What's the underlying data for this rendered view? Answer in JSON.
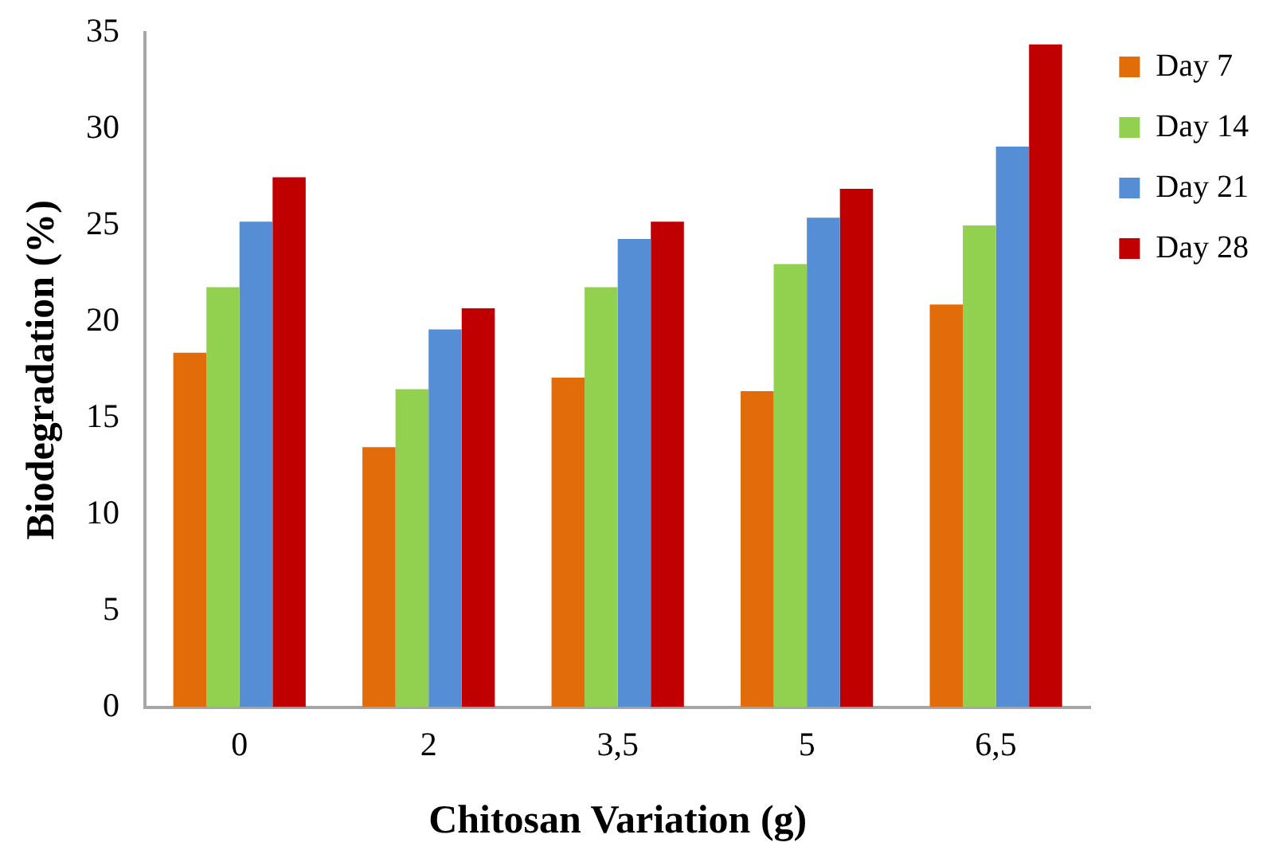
{
  "chart_data": {
    "type": "bar",
    "xlabel": "Chitosan Variation (g)",
    "ylabel": "Biodegradation (%)",
    "categories": [
      "0",
      "2",
      "3,5",
      "5",
      "6,5"
    ],
    "series": [
      {
        "name": "Day 7",
        "color": "#e36c0a",
        "values": [
          18.4,
          13.5,
          17.1,
          16.4,
          20.9
        ]
      },
      {
        "name": "Day 14",
        "color": "#92d050",
        "values": [
          21.8,
          16.5,
          21.8,
          23.0,
          25.0
        ]
      },
      {
        "name": "Day 21",
        "color": "#558ed5",
        "values": [
          25.2,
          19.6,
          24.3,
          25.4,
          29.1
        ]
      },
      {
        "name": "Day 28",
        "color": "#c00000",
        "values": [
          27.5,
          20.7,
          25.2,
          26.9,
          34.4
        ]
      }
    ],
    "ylim": [
      0,
      35
    ],
    "yticks": [
      0,
      5,
      10,
      15,
      20,
      25,
      30,
      35
    ],
    "grid": false,
    "legend": "right"
  }
}
